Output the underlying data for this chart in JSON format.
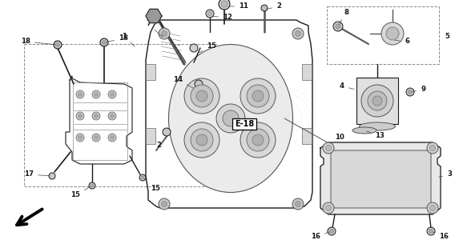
{
  "bg_color": "#ffffff",
  "line_color": "#1a1a1a",
  "label_color": "#000000",
  "e18_text": "E-18",
  "figsize": [
    5.78,
    3.0
  ],
  "dpi": 100,
  "xlim": [
    0,
    578
  ],
  "ylim": [
    0,
    300
  ]
}
